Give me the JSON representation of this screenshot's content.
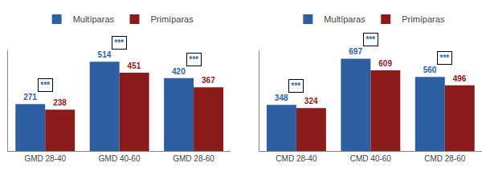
{
  "chart_data": [
    {
      "type": "bar",
      "categories": [
        "GMD 28-40",
        "GMD 40-60",
        "GMD 28-60"
      ],
      "series": [
        {
          "name": "Multíparas",
          "color": "#2E5FA3",
          "values": [
            271,
            514,
            420
          ]
        },
        {
          "name": "Primíparas",
          "color": "#8B1A1A",
          "values": [
            238,
            451,
            367
          ]
        }
      ],
      "ylim": [
        0,
        580
      ],
      "tick_labels": "x",
      "grid": false,
      "legend": "top",
      "data_labels": true,
      "annotations": [
        {
          "text": "***",
          "x": "GMD 28-40",
          "color": "#2E5FA3"
        },
        {
          "text": "***",
          "x": "GMD 40-60",
          "color": "#2E5FA3"
        },
        {
          "text": "***",
          "x": "GMD 28-60",
          "color": "#2E5FA3"
        }
      ]
    },
    {
      "type": "bar",
      "categories": [
        "CMD 28-40",
        "CMD 40-60",
        "CMD 28-60"
      ],
      "series": [
        {
          "name": "Multíparas",
          "color": "#2E5FA3",
          "values": [
            348,
            697,
            560
          ]
        },
        {
          "name": "Primíparas",
          "color": "#8B1A1A",
          "values": [
            324,
            609,
            496
          ]
        }
      ],
      "ylim": [
        0,
        760
      ],
      "tick_labels": "x",
      "grid": false,
      "legend": "top",
      "data_labels": true,
      "annotations": [
        {
          "text": "***",
          "x": "CMD 28-40",
          "color": "#2E5FA3"
        },
        {
          "text": "***",
          "x": "CMD 40-60",
          "color": "#2E5FA3"
        },
        {
          "text": "***",
          "x": "CMD 28-60",
          "color": "#2E5FA3"
        }
      ]
    }
  ]
}
